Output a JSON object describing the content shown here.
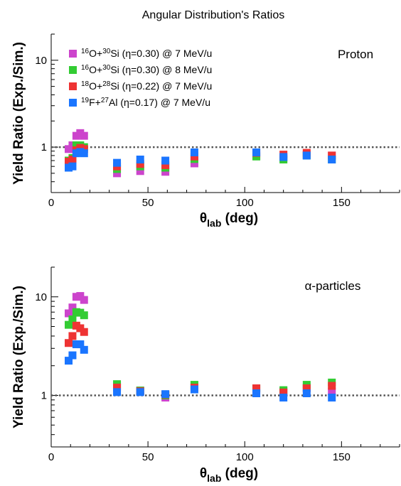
{
  "figure": {
    "title": "Angular Distribution's Ratios"
  },
  "legend": [
    {
      "color": "#cc44cc",
      "parts": [
        [
          "sup",
          "16"
        ],
        [
          "t",
          "O+"
        ],
        [
          "sup",
          "30"
        ],
        [
          "t",
          "Si (η=0.30) @ 7 MeV/u"
        ]
      ]
    },
    {
      "color": "#33cc33",
      "parts": [
        [
          "sup",
          "16"
        ],
        [
          "t",
          "O+"
        ],
        [
          "sup",
          "30"
        ],
        [
          "t",
          "Si (η=0.30) @ 8 MeV/u"
        ]
      ]
    },
    {
      "color": "#ee3333",
      "parts": [
        [
          "sup",
          "18"
        ],
        [
          "t",
          "O+"
        ],
        [
          "sup",
          "28"
        ],
        [
          "t",
          "Si (η=0.22) @ 7 MeV/u"
        ]
      ]
    },
    {
      "color": "#1a75ff",
      "parts": [
        [
          "sup",
          "19"
        ],
        [
          "t",
          "F+"
        ],
        [
          "sup",
          "27"
        ],
        [
          "t",
          "Al (η=0.17) @ 7 MeV/u"
        ]
      ]
    }
  ],
  "chart_data": [
    {
      "type": "scatter",
      "panel_label": "Proton",
      "xlabel": "θlab (deg)",
      "ylabel": "Yield Ratio (Exp./Sim.)",
      "xlim": [
        0,
        180
      ],
      "ylim": [
        0.3,
        20
      ],
      "yscale": "log",
      "xticks": [
        0,
        50,
        100,
        150
      ],
      "yticks": [
        1,
        10
      ],
      "reference_line": 1,
      "grid": false,
      "series": [
        {
          "color": "#cc44cc",
          "x": [
            9,
            11,
            13,
            15,
            17,
            34,
            46,
            59,
            74,
            106,
            120,
            132,
            145
          ],
          "y": [
            0.95,
            1.05,
            1.35,
            1.45,
            1.35,
            0.5,
            0.53,
            0.52,
            0.65,
            0.8,
            0.75,
            0.82,
            0.8
          ]
        },
        {
          "color": "#33cc33",
          "x": [
            9,
            11,
            13,
            15,
            17,
            34,
            46,
            59,
            74,
            106,
            120,
            132,
            145
          ],
          "y": [
            0.7,
            0.75,
            1.05,
            1.05,
            1.0,
            0.56,
            0.6,
            0.58,
            0.73,
            0.78,
            0.72,
            0.8,
            0.72
          ]
        },
        {
          "color": "#ee3333",
          "x": [
            9,
            11,
            13,
            15,
            17,
            34,
            46,
            59,
            74,
            106,
            120,
            132,
            145
          ],
          "y": [
            0.68,
            0.72,
            0.92,
            0.98,
            0.95,
            0.6,
            0.64,
            0.62,
            0.78,
            0.86,
            0.82,
            0.86,
            0.8
          ]
        },
        {
          "color": "#1a75ff",
          "x": [
            9,
            11,
            13,
            15,
            17,
            34,
            46,
            59,
            74,
            106,
            120,
            132,
            145
          ],
          "y": [
            0.58,
            0.6,
            0.85,
            0.88,
            0.85,
            0.66,
            0.72,
            0.7,
            0.87,
            0.87,
            0.77,
            0.8,
            0.72
          ]
        }
      ]
    },
    {
      "type": "scatter",
      "panel_label": "α-particles",
      "xlabel": "θlab (deg)",
      "ylabel": "Yield Ratio (Exp./Sim.)",
      "xlim": [
        0,
        180
      ],
      "ylim": [
        0.3,
        20
      ],
      "yscale": "log",
      "xticks": [
        0,
        50,
        100,
        150
      ],
      "yticks": [
        1,
        10
      ],
      "reference_line": 1,
      "grid": false,
      "series": [
        {
          "color": "#cc44cc",
          "x": [
            9,
            11,
            13,
            15,
            17,
            34,
            46,
            59,
            74,
            106,
            120,
            132,
            145
          ],
          "y": [
            6.8,
            7.8,
            10.0,
            10.2,
            9.3,
            1.25,
            1.12,
            0.95,
            1.25,
            1.15,
            1.1,
            1.2,
            1.1
          ]
        },
        {
          "color": "#33cc33",
          "x": [
            9,
            11,
            13,
            15,
            17,
            34,
            46,
            59,
            74,
            106,
            120,
            132,
            145
          ],
          "y": [
            5.2,
            5.9,
            7.0,
            6.9,
            6.5,
            1.3,
            1.12,
            1.0,
            1.28,
            1.18,
            1.13,
            1.28,
            1.35
          ]
        },
        {
          "color": "#ee3333",
          "x": [
            9,
            11,
            13,
            15,
            17,
            34,
            46,
            59,
            74,
            106,
            120,
            132,
            145
          ],
          "y": [
            3.4,
            4.0,
            5.1,
            4.8,
            4.4,
            1.2,
            1.1,
            1.02,
            1.2,
            1.18,
            1.07,
            1.18,
            1.25
          ]
        },
        {
          "color": "#1a75ff",
          "x": [
            9,
            11,
            13,
            15,
            17,
            34,
            46,
            59,
            74,
            106,
            120,
            132,
            145
          ],
          "y": [
            2.25,
            2.55,
            3.3,
            3.3,
            2.9,
            1.08,
            1.08,
            1.03,
            1.15,
            1.05,
            0.95,
            1.05,
            0.95
          ]
        }
      ]
    }
  ]
}
